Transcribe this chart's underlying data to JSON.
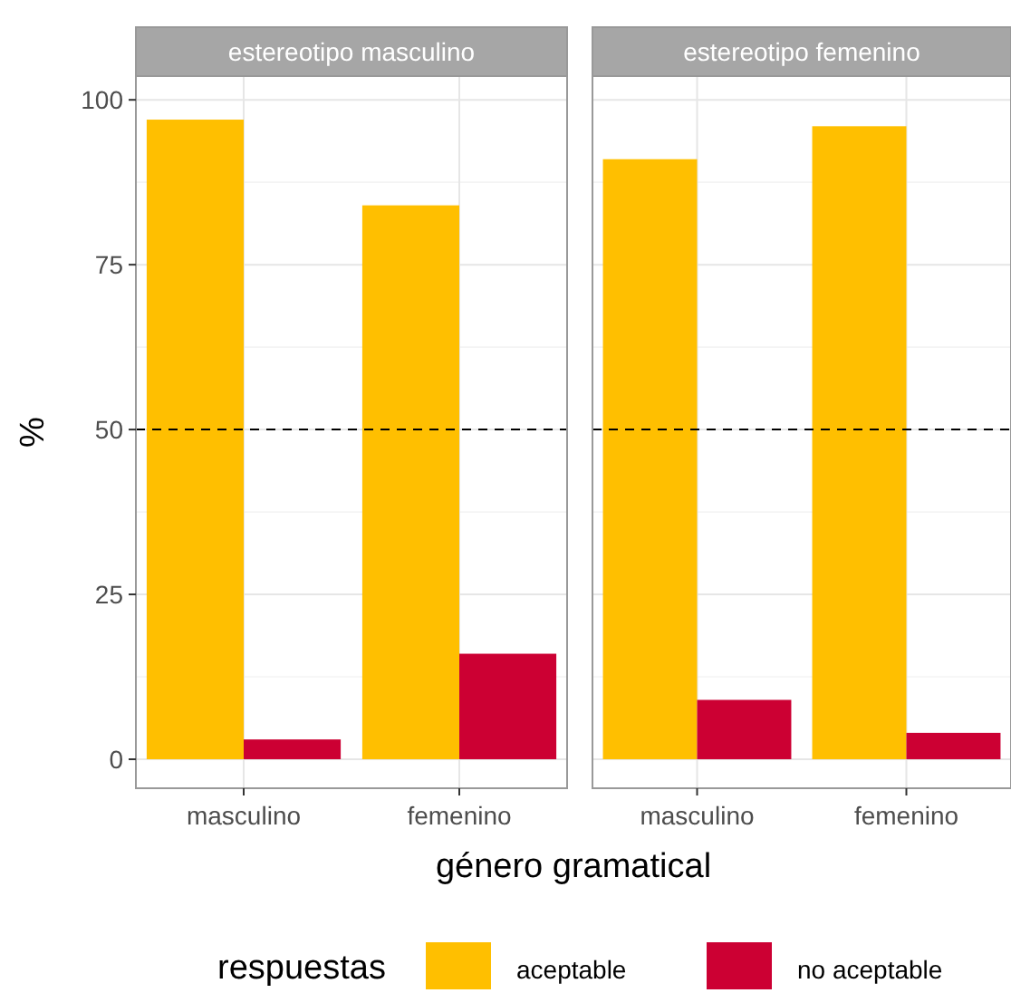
{
  "chart_data": [
    {
      "type": "bar",
      "title": "estereotipo masculino",
      "xlabel": "género gramatical",
      "ylabel": "%",
      "legend_title": "respuestas",
      "legend": "bottom",
      "categories": [
        "masculino",
        "femenino"
      ],
      "series": [
        {
          "name": "aceptable",
          "color": "#ffbf00",
          "values": [
            97,
            84
          ]
        },
        {
          "name": "no aceptable",
          "color": "#cc0033",
          "values": [
            3,
            16
          ]
        }
      ],
      "ylim": [
        -4.4,
        103.6
      ],
      "yticks": [
        0,
        25,
        50,
        75,
        100
      ],
      "grid": true,
      "ref_lines": [
        {
          "axis": "y",
          "value": 50,
          "line_style": "dashed",
          "color": "#000000"
        }
      ]
    },
    {
      "type": "bar",
      "title": "estereotipo femenino",
      "categories": [
        "masculino",
        "femenino"
      ],
      "series": [
        {
          "color": "#ffbf00",
          "values": [
            91,
            96
          ]
        },
        {
          "color": "#cc0033",
          "values": [
            9,
            4
          ]
        }
      ],
      "ylim": [
        -4.4,
        103.6
      ],
      "yticks": [
        0,
        25,
        50,
        75,
        100
      ],
      "grid": true,
      "tick_labels": "x",
      "ref_lines": [
        {
          "axis": "y",
          "value": 50,
          "line_style": "dashed",
          "color": "#000000"
        }
      ]
    }
  ]
}
